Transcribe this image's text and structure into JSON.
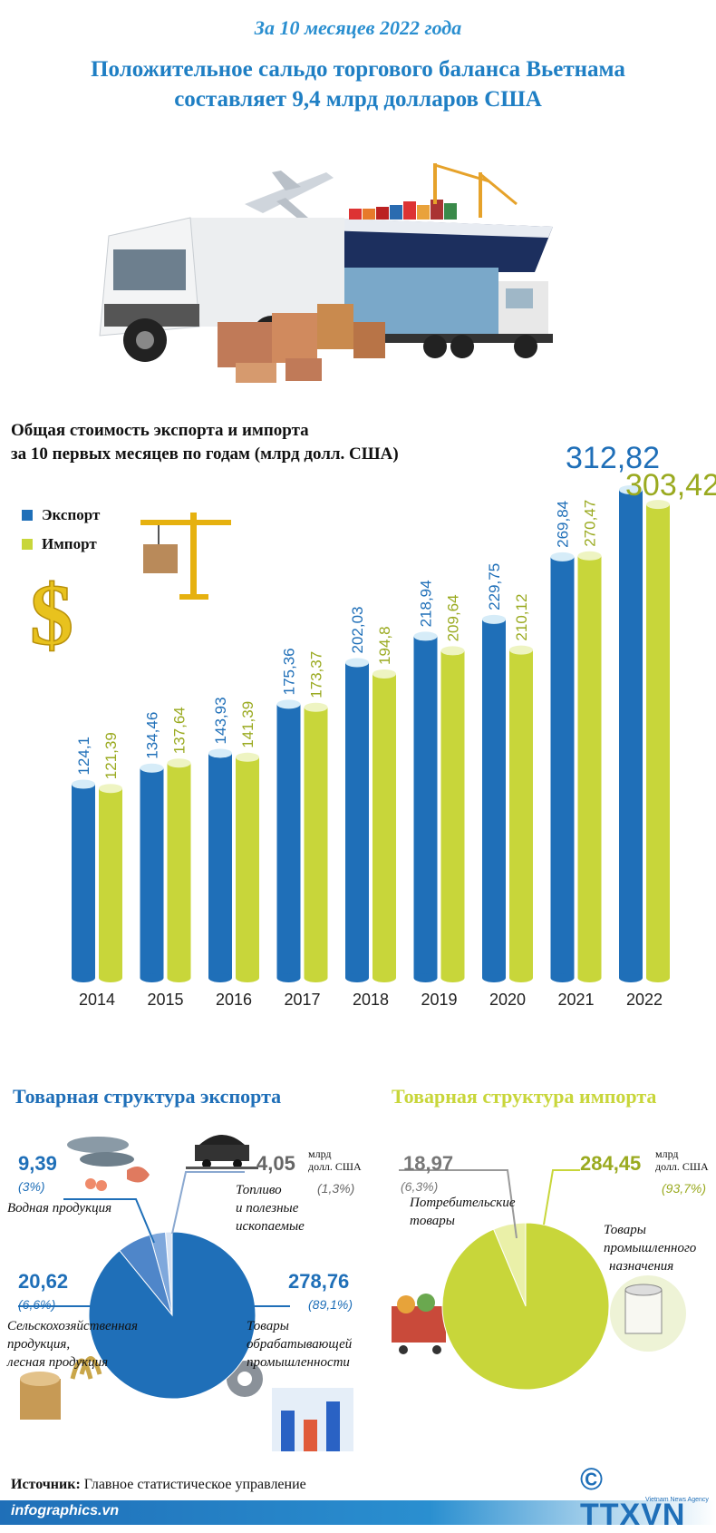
{
  "header": {
    "subtitle": "За 10 месяцев 2022 года",
    "title_line1": "Положительное сальдо торгового баланса Вьетнама",
    "title_line2": "составляет 9,4 млрд долларов США"
  },
  "chart_data": {
    "type": "bar",
    "title_line1": "Общая стоимость экспорта и импорта",
    "title_line2": "за 10 первых месяцев по годам (млрд долл. США)",
    "categories": [
      "2014",
      "2015",
      "2016",
      "2017",
      "2018",
      "2019",
      "2020",
      "2021",
      "2022"
    ],
    "series": [
      {
        "name": "Экспорт",
        "color": "#1f6fb8",
        "values": [
          124.1,
          134.46,
          143.93,
          175.36,
          202.03,
          218.94,
          229.75,
          269.84,
          312.82
        ],
        "labels": [
          "124,1",
          "134,46",
          "143,93",
          "175,36",
          "202,03",
          "218,94",
          "229,75",
          "269,84",
          "312,82"
        ]
      },
      {
        "name": "Импорт",
        "color": "#c8d63a",
        "values": [
          121.39,
          137.64,
          141.39,
          173.37,
          194.8,
          209.64,
          210.12,
          270.47,
          303.42
        ],
        "labels": [
          "121,39",
          "137,64",
          "141,39",
          "173,37",
          "194,8",
          "209,64",
          "210,12",
          "270,47",
          "303,42"
        ]
      }
    ],
    "legend_position": "top-left",
    "grid": false
  },
  "export_structure": {
    "title": "Товарная структура экспорта",
    "color": "#1f6fb8",
    "unit": [
      "млрд",
      "долл. США"
    ],
    "items": [
      {
        "value": "9,39",
        "percent": "(3%)",
        "label": [
          "Водная продукция"
        ],
        "share": 3.0
      },
      {
        "value": "4,05",
        "percent": "(1,3%)",
        "label": [
          "Топливо",
          "и полезные",
          "ископаемые"
        ],
        "share": 1.3
      },
      {
        "value": "20,62",
        "percent": "(6,6%)",
        "label": [
          "Сельскохозяйственная",
          "продукция,",
          "лесная продукция"
        ],
        "share": 6.6
      },
      {
        "value": "278,76",
        "percent": "(89,1%)",
        "label": [
          "Товары",
          "обрабатывающей",
          "промышленности"
        ],
        "share": 89.1
      }
    ]
  },
  "import_structure": {
    "title": "Товарная структура импорта",
    "color": "#c8d63a",
    "unit": [
      "млрд",
      "долл. США"
    ],
    "items": [
      {
        "value": "18,97",
        "percent": "(6,3%)",
        "label": [
          "Потребительские",
          "товары"
        ],
        "share": 6.3
      },
      {
        "value": "284,45",
        "percent": "(93,7%)",
        "label": [
          "Товары",
          "промышленного",
          "назначения"
        ],
        "share": 93.7
      }
    ]
  },
  "footer": {
    "source_label": "Источник:",
    "source_text": " Главное статистическое управление",
    "site": "infographics.vn",
    "brand": "© TTXVN",
    "brand_sub": "Vietnam News Agency"
  },
  "icons": [
    "cargo-transport-illustration",
    "crane-box-icon",
    "dollar-sign-icon",
    "fish-seafood-icon",
    "coal-cart-icon",
    "wood-rice-icon",
    "factory-gear-icon",
    "shopping-cart-icon",
    "paper-roll-icon"
  ]
}
